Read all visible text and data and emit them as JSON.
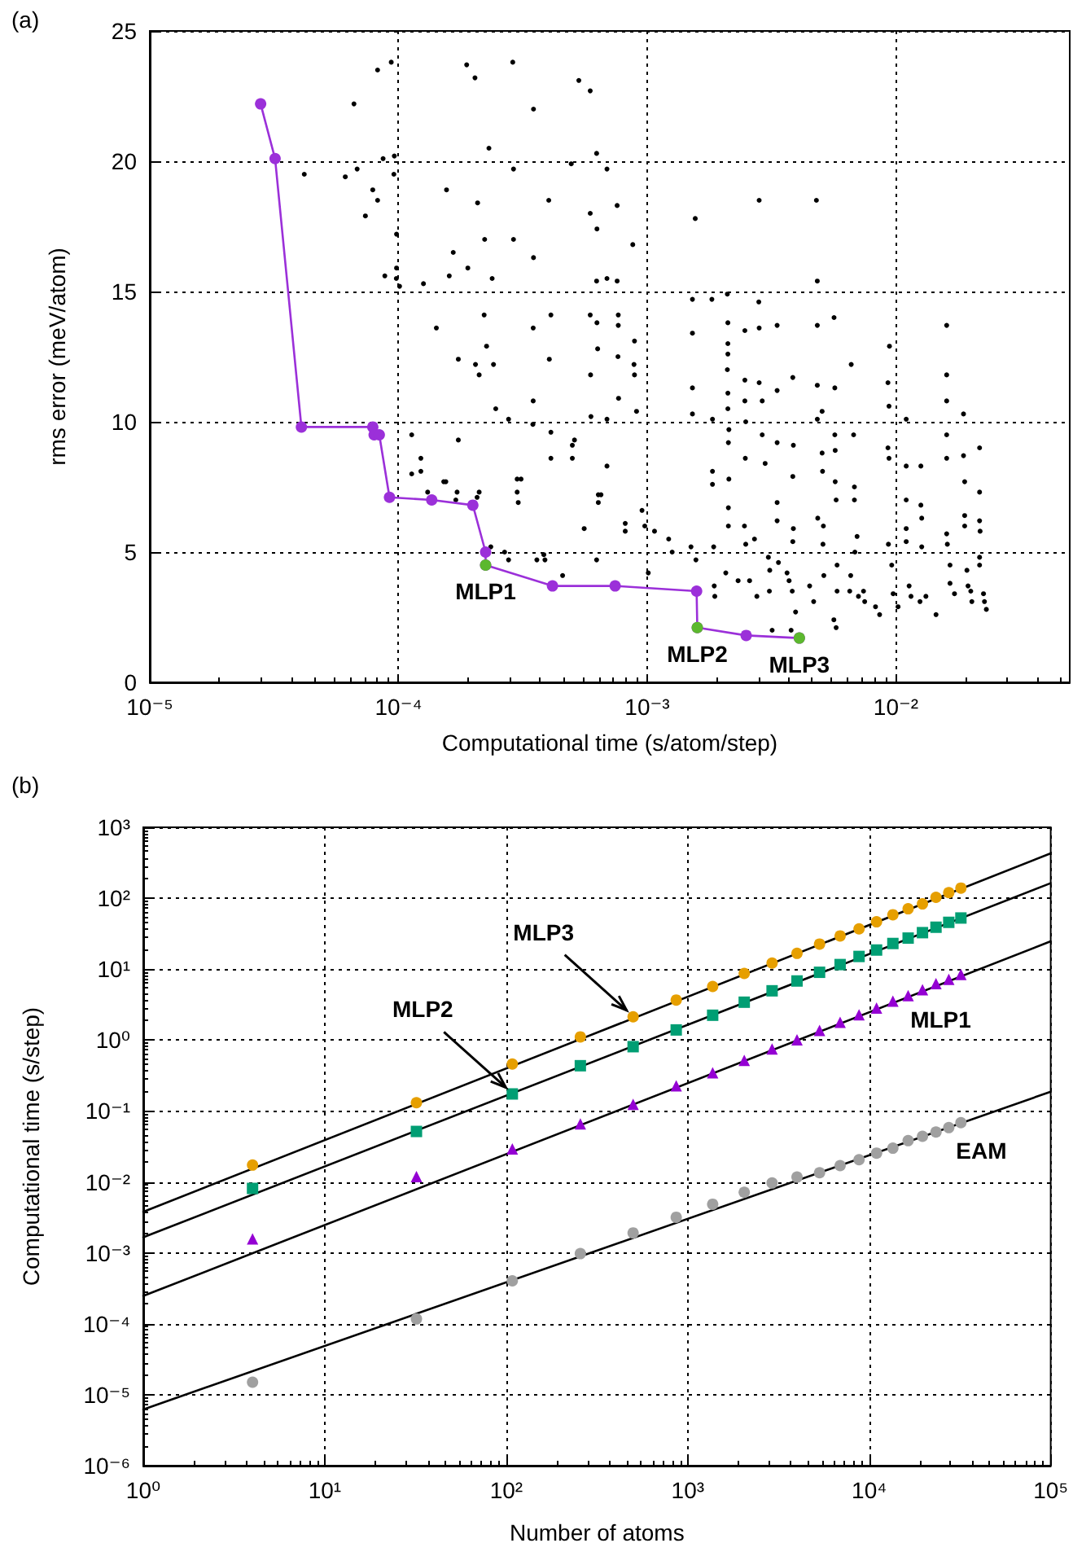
{
  "chart_data": [
    {
      "type": "scatter",
      "title": "(a)",
      "xlabel": "Computational time (s/atom/step)",
      "ylabel": "rms error (meV/atom)",
      "log": "x",
      "grid": true,
      "marker": "circle",
      "xlim": [
        1e-05,
        0.05
      ],
      "xticks": [
        {
          "value": 1e-05,
          "label": "10⁻⁵"
        },
        {
          "value": 0.0001,
          "label": "10⁻⁴"
        },
        {
          "value": 0.001,
          "label": "10⁻³"
        },
        {
          "value": 0.01,
          "label": "10⁻²"
        }
      ],
      "ylim": [
        0,
        25
      ],
      "yticks": [
        0,
        5,
        10,
        15,
        20,
        25
      ],
      "annotations": [
        {
          "text": "MLP1",
          "x": 0.000224,
          "y": 4.5
        },
        {
          "text": "MLP2",
          "x": 0.00159,
          "y": 2.1
        },
        {
          "text": "MLP3",
          "x": 0.00409,
          "y": 1.7
        }
      ],
      "series": [
        {
          "color": "#000000",
          "x": [
            8.24e-05,
            9.35e-05,
            6.62e-05,
            8.67e-05,
            9.62e-05,
            4.18e-05,
            6.11e-05,
            6.82e-05,
            9.58e-05,
            7.88e-05,
            8.24e-05,
            7.36e-05,
            9.82e-05,
            8.81e-05,
            9.82e-05,
            9.8e-05,
            0.000101,
            0.000126,
            0.000188,
            0.000203,
            0.000288,
            0.000231,
            0.000156,
            0.000208,
            0.00029,
            0.000349,
            0.000222,
            0.000166,
            0.00019,
            0.00016,
            0.000238,
            0.00029,
            0.000349,
            0.000402,
            0.000495,
            0.000531,
            0.00059,
            0.000626,
            0.00059,
            0.000628,
            0.000626,
            0.000142,
            0.000221,
            0.000226,
            0.000174,
            0.000204,
            0.000211,
            0.000241,
            0.000348,
            0.00041,
            0.000404,
            0.00059,
            0.000628,
            0.000592,
            0.000632,
            0.000246,
            0.000277,
            0.000348,
            0.000347,
            0.000594,
            0.00041,
            0.000174,
            0.000113,
            0.000123,
            0.000113,
            0.000123,
            0.000152,
            0.000155,
            0.000172,
            0.000211,
            0.00017,
            0.000207,
            0.000131,
            0.0003,
            0.000311,
            0.0003,
            0.000303,
            0.00041,
            0.0005,
            0.00051,
            0.0005,
            0.000636,
            0.000636,
            0.000558,
            0.000235,
            0.000267,
            0.000277,
            0.00036,
            0.000384,
            0.000388,
            0.000457,
            0.000626,
            0.000689,
            0.000757,
            0.000875,
            0.000689,
            0.000757,
            0.000765,
            0.000765,
            0.000889,
            0.000763,
            0.000885,
            0.000889,
            0.000767,
            0.000906,
            0.000689,
            0.000689,
            0.000652,
            0.000816,
            0.000816,
            0.000953,
            0.000978,
            0.00107,
            0.00101,
            0.00122,
            0.00126,
            0.00156,
            0.00152,
            0.00152,
            0.00152,
            0.00152,
            0.0015,
            0.00157,
            0.00182,
            0.00183,
            0.00183,
            0.00183,
            0.00185,
            0.00186,
            0.00187,
            0.0021,
            0.00211,
            0.00211,
            0.00211,
            0.0021,
            0.00211,
            0.00211,
            0.00213,
            0.00212,
            0.00213,
            0.00212,
            0.00212,
            0.00207,
            0.00232,
            0.00247,
            0.00247,
            0.00247,
            0.00249,
            0.00248,
            0.00246,
            0.00249,
            0.00258,
            0.00276,
            0.00282,
            0.00281,
            0.00282,
            0.00282,
            0.0029,
            0.0029,
            0.00298,
            0.0027,
            0.00307,
            0.00311,
            0.0031,
            0.00333,
            0.00333,
            0.00333,
            0.00333,
            0.00333,
            0.00337,
            0.00318,
            0.00365,
            0.00372,
            0.00385,
            0.00387,
            0.00385,
            0.00387,
            0.00385,
            0.00383,
            0.00395,
            0.00379,
            0.0045,
            0.00479,
            0.00483,
            0.00483,
            0.00483,
            0.00483,
            0.00505,
            0.00505,
            0.00507,
            0.00485,
            0.00511,
            0.00509,
            0.00513,
            0.00467,
            0.00564,
            0.00568,
            0.00568,
            0.0057,
            0.0057,
            0.00575,
            0.0058,
            0.0058,
            0.00563,
            0.00575,
            0.00661,
            0.00676,
            0.00681,
            0.00681,
            0.00698,
            0.00684,
            0.00658,
            0.00652,
            0.00707,
            0.00741,
            0.00749,
            0.00828,
            0.0086,
            0.00942,
            0.00929,
            0.00938,
            0.00929,
            0.00938,
            0.00933,
            0.00962,
            0.00975,
            0.0102,
            0.011,
            0.011,
            0.011,
            0.011,
            0.011,
            0.0113,
            0.0115,
            0.0125,
            0.0126,
            0.0126,
            0.0127,
            0.0127,
            0.0132,
            0.0145,
            0.016,
            0.016,
            0.016,
            0.016,
            0.016,
            0.016,
            0.0161,
            0.0165,
            0.0165,
            0.0172,
            0.0187,
            0.0187,
            0.0189,
            0.0189,
            0.0189,
            0.0193,
            0.0195,
            0.02,
            0.0202,
            0.0217,
            0.0217,
            0.0217,
            0.0218,
            0.0217,
            0.0217,
            0.0225,
            0.0227,
            0.0231
          ],
          "values": [
            23.5,
            23.8,
            22.2,
            20.1,
            20.2,
            19.5,
            19.4,
            19.7,
            19.5,
            18.9,
            18.5,
            17.9,
            17.2,
            15.6,
            15.9,
            15.5,
            15.2,
            15.3,
            23.7,
            23.2,
            23.8,
            20.5,
            18.9,
            18.4,
            19.7,
            22.0,
            17.0,
            16.5,
            15.9,
            15.6,
            15.5,
            17.0,
            16.3,
            18.5,
            19.9,
            23.1,
            22.7,
            20.3,
            18.0,
            17.4,
            15.4,
            13.6,
            14.1,
            12.9,
            12.4,
            12.2,
            11.8,
            12.2,
            13.6,
            14.1,
            12.4,
            14.1,
            13.8,
            11.8,
            12.8,
            10.5,
            10.1,
            10.8,
            9.9,
            10.2,
            9.6,
            9.3,
            9.5,
            8.6,
            8.0,
            8.1,
            7.7,
            7.7,
            7.3,
            7.3,
            7.0,
            7.1,
            7.3,
            7.8,
            7.8,
            7.3,
            6.9,
            8.6,
            9.1,
            9.3,
            8.6,
            7.2,
            6.9,
            5.9,
            5.2,
            5.0,
            4.7,
            4.7,
            4.9,
            4.7,
            4.1,
            4.7,
            19.7,
            18.3,
            16.8,
            15.5,
            15.4,
            14.1,
            13.7,
            13.1,
            12.5,
            12.2,
            11.8,
            10.9,
            10.4,
            10.1,
            8.3,
            7.2,
            6.1,
            5.8,
            6.6,
            6.0,
            5.8,
            4.2,
            5.5,
            5.0,
            17.8,
            14.7,
            13.4,
            11.3,
            10.3,
            5.2,
            4.7,
            14.7,
            10.1,
            8.1,
            7.6,
            5.2,
            3.7,
            3.3,
            14.9,
            13.8,
            13.0,
            12.6,
            12.0,
            11.1,
            10.5,
            9.7,
            9.2,
            7.8,
            6.7,
            6.0,
            4.2,
            3.9,
            13.5,
            11.6,
            10.8,
            10.0,
            8.6,
            6.0,
            5.3,
            3.9,
            3.3,
            18.5,
            14.6,
            13.6,
            11.5,
            10.8,
            9.5,
            8.4,
            5.5,
            4.8,
            4.3,
            3.5,
            13.7,
            11.2,
            9.2,
            6.9,
            6.2,
            4.6,
            2.0,
            4.2,
            3.9,
            11.7,
            9.1,
            7.9,
            5.9,
            5.4,
            3.5,
            2.7,
            2.0,
            3.7,
            18.5,
            15.4,
            13.7,
            11.4,
            10.1,
            10.4,
            8.8,
            8.1,
            6.3,
            6.0,
            5.3,
            4.1,
            3.1,
            14.0,
            11.3,
            9.5,
            8.9,
            7.7,
            7.0,
            4.5,
            3.5,
            2.4,
            2.1,
            12.2,
            9.5,
            7.5,
            7.0,
            5.6,
            5.0,
            4.1,
            3.5,
            3.3,
            3.5,
            3.1,
            2.9,
            2.6,
            12.9,
            11.5,
            10.6,
            9.0,
            8.6,
            5.3,
            4.5,
            3.4,
            2.9,
            10.1,
            8.3,
            7.0,
            5.9,
            5.4,
            3.7,
            3.3,
            3.1,
            8.3,
            6.8,
            6.3,
            5.2,
            3.3,
            2.6,
            13.7,
            11.8,
            10.8,
            9.5,
            8.6,
            5.7,
            5.3,
            4.5,
            3.8,
            3.4,
            10.3,
            8.7,
            7.7,
            6.4,
            6.0,
            4.3,
            3.7,
            3.5,
            3.1,
            9.0,
            7.3,
            6.2,
            5.8,
            4.8,
            4.5,
            3.4,
            3.1,
            2.8
          ]
        },
        {
          "type": "line",
          "color": "#9b30d9",
          "line_style": "solid",
          "x": [
            2.79e-05,
            3.19e-05,
            4.07e-05,
            7.88e-05,
            7.98e-05,
            8.37e-05,
            9.2e-05,
            0.000136,
            0.000199,
            0.000224,
            0.000224,
            0.000416,
            0.000743,
            0.00158,
            0.00159,
            0.0025,
            0.00409
          ],
          "values": [
            22.2,
            20.1,
            9.8,
            9.8,
            9.5,
            9.5,
            7.1,
            7.0,
            6.8,
            5.0,
            4.5,
            3.7,
            3.7,
            3.5,
            2.1,
            1.8,
            1.7
          ]
        },
        {
          "color": "#5cb82e",
          "x": [
            0.000224,
            0.00159,
            0.00409
          ],
          "values": [
            4.5,
            2.1,
            1.7
          ]
        }
      ]
    },
    {
      "type": "scatter",
      "title": "(b)",
      "xlabel": "Number of atoms",
      "ylabel": "Computational time (s/step)",
      "log": "xy",
      "grid": true,
      "xlim": [
        1,
        100000
      ],
      "xticks": [
        {
          "value": 1,
          "label": "10⁰"
        },
        {
          "value": 10,
          "label": "10¹"
        },
        {
          "value": 100,
          "label": "10²"
        },
        {
          "value": 1000,
          "label": "10³"
        },
        {
          "value": 10000,
          "label": "10⁴"
        },
        {
          "value": 100000,
          "label": "10⁵"
        }
      ],
      "ylim": [
        1e-06,
        1000
      ],
      "yticks": [
        {
          "value": 1e-06,
          "label": "10⁻⁶"
        },
        {
          "value": 1e-05,
          "label": "10⁻⁵"
        },
        {
          "value": 0.0001,
          "label": "10⁻⁴"
        },
        {
          "value": 0.001,
          "label": "10⁻³"
        },
        {
          "value": 0.01,
          "label": "10⁻²"
        },
        {
          "value": 0.1,
          "label": "10⁻¹"
        },
        {
          "value": 1,
          "label": "10⁰"
        },
        {
          "value": 10,
          "label": "10¹"
        },
        {
          "value": 100,
          "label": "10²"
        },
        {
          "value": 1000,
          "label": "10³"
        }
      ],
      "x": [
        4,
        32,
        108,
        256,
        500,
        864,
        1372,
        2048,
        2916,
        4000,
        5324,
        6912,
        8788,
        10976,
        13500,
        16384,
        19652,
        23328,
        27436,
        32000
      ],
      "annotations": [
        {
          "text": "MLP2",
          "x": 108,
          "y": 0.174
        },
        {
          "text": "MLP3",
          "x": 500,
          "y": 2.13
        },
        {
          "text": "MLP1",
          "x": 16384,
          "y": 4.05
        },
        {
          "text": "EAM",
          "x": 27436,
          "y": 0.0588
        }
      ],
      "series": [
        {
          "type": "line",
          "color": "#000000",
          "marker": "none",
          "line_style": "solid",
          "x": [
            1,
            100000
          ],
          "values": [
            0.00379,
            429
          ]
        },
        {
          "type": "line",
          "color": "#000000",
          "marker": "none",
          "line_style": "solid",
          "x": [
            1,
            100000
          ],
          "values": [
            0.00166,
            163
          ]
        },
        {
          "type": "line",
          "color": "#000000",
          "marker": "none",
          "line_style": "solid",
          "x": [
            1,
            100000
          ],
          "values": [
            0.000247,
            24.7
          ]
        },
        {
          "type": "line",
          "color": "#000000",
          "marker": "none",
          "line_style": "solid",
          "x": [
            1,
            100000
          ],
          "values": [
            6.2e-06,
            0.187
          ]
        },
        {
          "color": "#e69f00",
          "marker": "circle",
          "values": [
            0.0173,
            0.131,
            0.459,
            1.11,
            2.13,
            3.67,
            5.7,
            8.71,
            12.2,
            16.7,
            22.6,
            29.4,
            37.0,
            46.5,
            58.5,
            71.0,
            83.2,
            103,
            120,
            139
          ]
        },
        {
          "color": "#009e73",
          "marker": "square",
          "values": [
            0.0081,
            0.0515,
            0.174,
            0.435,
            0.807,
            1.39,
            2.24,
            3.42,
            4.95,
            6.81,
            9.03,
            11.6,
            15.1,
            18.6,
            23.0,
            27.4,
            32.7,
            39.0,
            45.7,
            52.6
          ]
        },
        {
          "color": "#9400d3",
          "marker": "triangle",
          "values": [
            0.00157,
            0.0119,
            0.0293,
            0.0659,
            0.124,
            0.226,
            0.346,
            0.519,
            0.751,
            1.01,
            1.37,
            1.78,
            2.28,
            2.82,
            3.55,
            4.23,
            5.13,
            6.23,
            7.18,
            8.41
          ]
        },
        {
          "color": "#a0a0a0",
          "marker": "circle",
          "values": [
            1.5e-05,
            0.000117,
            0.000404,
            0.000975,
            0.00191,
            0.00318,
            0.00485,
            0.00715,
            0.00966,
            0.0117,
            0.0135,
            0.017,
            0.0206,
            0.0255,
            0.0299,
            0.0382,
            0.044,
            0.0506,
            0.0583,
            0.0684
          ]
        }
      ]
    }
  ]
}
